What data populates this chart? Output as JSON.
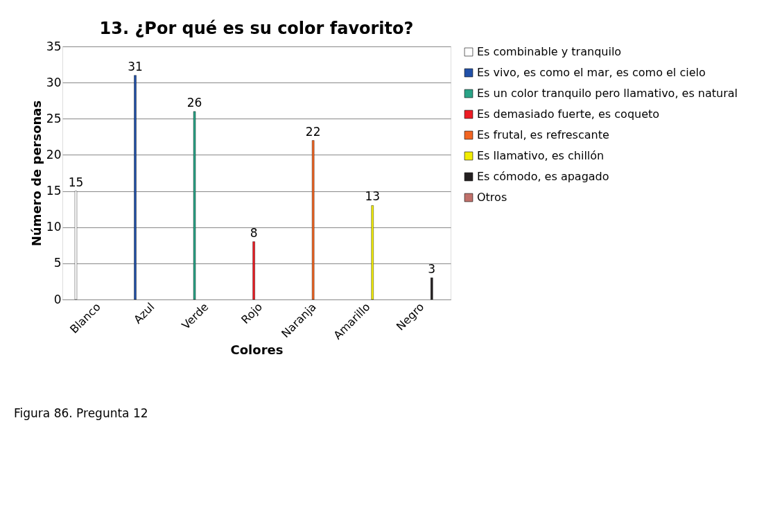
{
  "chart_data": {
    "type": "bar",
    "title": "13. ¿Por qué es su color favorito?",
    "xlabel": "Colores",
    "ylabel": "Número de personas",
    "categories": [
      "Blanco",
      "Azul",
      "Verde",
      "Rojo",
      "Naranja",
      "Amarillo",
      "Negro"
    ],
    "series": [
      {
        "name": "Es combinable y tranquilo",
        "color": "#ffffff",
        "values": [
          15,
          null,
          null,
          null,
          null,
          null,
          null
        ]
      },
      {
        "name": "Es vivo, es como el mar, es como el cielo",
        "color": "#2150a8",
        "values": [
          null,
          31,
          null,
          null,
          null,
          null,
          null
        ]
      },
      {
        "name": "Es un color tranquilo pero llamativo, es natural",
        "color": "#29a386",
        "values": [
          null,
          null,
          26,
          null,
          null,
          null,
          null
        ]
      },
      {
        "name": "Es demasiado fuerte, es coqueto",
        "color": "#ed1c24",
        "values": [
          null,
          null,
          null,
          8,
          null,
          null,
          null
        ]
      },
      {
        "name": "Es frutal, es refrescante",
        "color": "#f26522",
        "values": [
          null,
          null,
          null,
          null,
          22,
          null,
          null
        ]
      },
      {
        "name": "Es llamativo, es chillón",
        "color": "#f2ed00",
        "values": [
          null,
          null,
          null,
          null,
          null,
          13,
          null
        ]
      },
      {
        "name": "Es cómodo, es apagado",
        "color": "#231f20",
        "values": [
          null,
          null,
          null,
          null,
          null,
          null,
          3
        ]
      },
      {
        "name": "Otros",
        "color": "#c0706a",
        "values": [
          null,
          null,
          null,
          null,
          null,
          null,
          null
        ]
      }
    ],
    "ylim": [
      0,
      35
    ],
    "yticks": [
      0,
      5,
      10,
      15,
      20,
      25,
      30,
      35
    ],
    "grid": "y",
    "legend": "right",
    "data_labels": true,
    "annotations": [
      "Figura 86. Pregunta 12"
    ]
  }
}
